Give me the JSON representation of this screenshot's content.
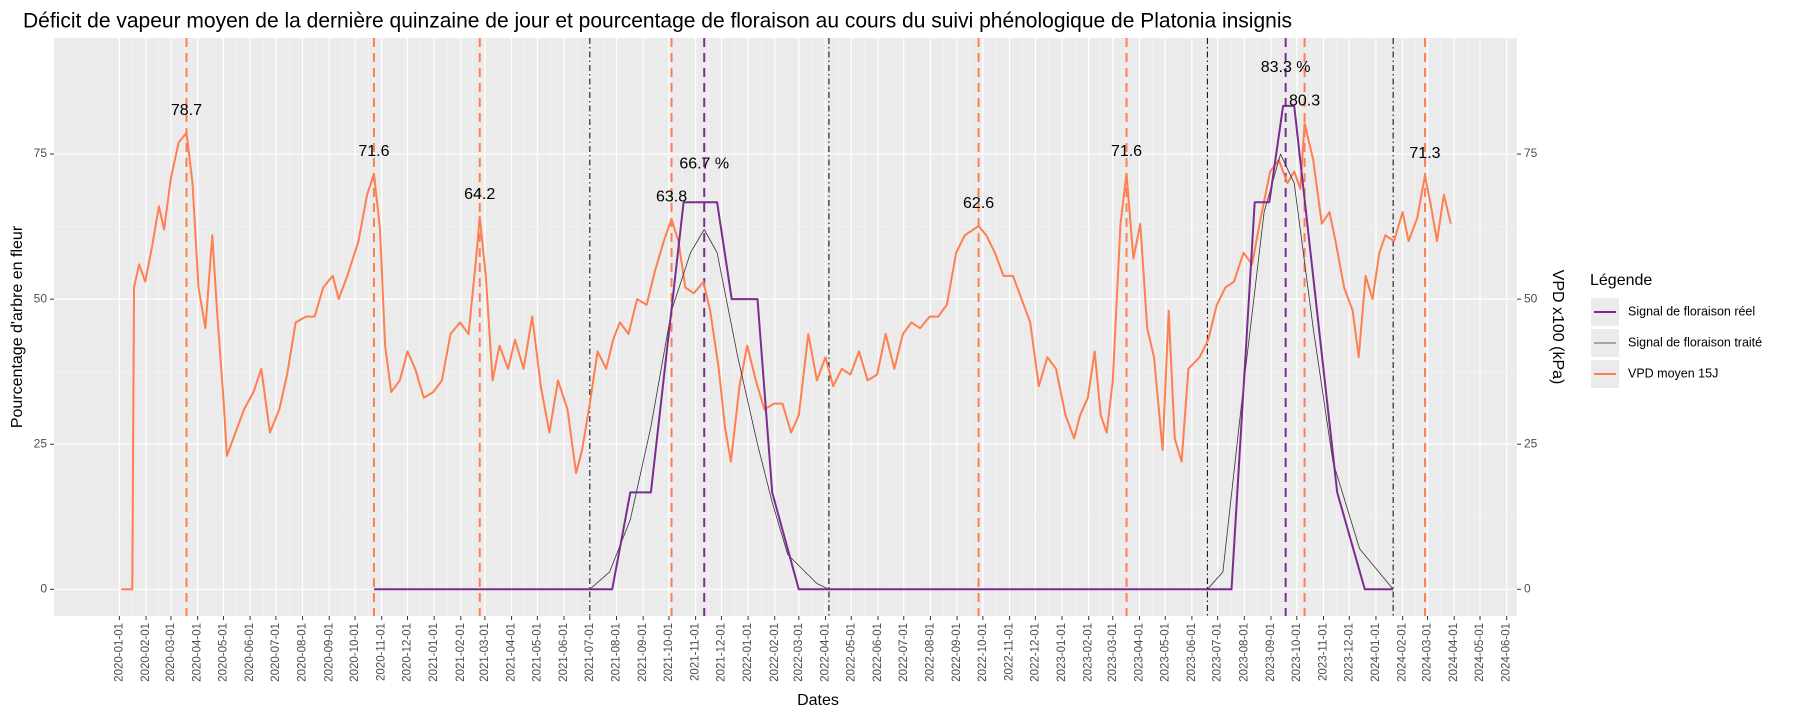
{
  "chart_data": {
    "type": "line",
    "title": "Déficit de vapeur moyen de la dernière quinzaine de jour et pourcentage de floraison au cours du suivi phénologique de Platonia insignis",
    "x_label": "Dates",
    "y_label": "Pourcentage d'arbre en fleur",
    "y2_label": "VPD x100 (kPa)",
    "legend_title": "Légende",
    "legend": "right",
    "grid": true,
    "xlim": [
      "2019-10-17",
      "2024-06-13"
    ],
    "xticks": [
      "2020-01-01",
      "2020-02-01",
      "2020-03-01",
      "2020-04-01",
      "2020-05-01",
      "2020-06-01",
      "2020-07-01",
      "2020-08-01",
      "2020-09-01",
      "2020-10-01",
      "2020-11-01",
      "2020-12-01",
      "2021-01-01",
      "2021-02-01",
      "2021-03-01",
      "2021-04-01",
      "2021-05-01",
      "2021-06-01",
      "2021-07-01",
      "2021-08-01",
      "2021-09-01",
      "2021-10-01",
      "2021-11-01",
      "2021-12-01",
      "2022-01-01",
      "2022-02-01",
      "2022-03-01",
      "2022-04-01",
      "2022-05-01",
      "2022-06-01",
      "2022-07-01",
      "2022-08-01",
      "2022-09-01",
      "2022-10-01",
      "2022-11-01",
      "2022-12-01",
      "2023-01-01",
      "2023-02-01",
      "2023-03-01",
      "2023-04-01",
      "2023-05-01",
      "2023-06-01",
      "2023-07-01",
      "2023-08-01",
      "2023-09-01",
      "2023-10-01",
      "2023-11-01",
      "2023-12-01",
      "2024-01-01",
      "2024-02-01",
      "2024-03-01",
      "2024-04-01",
      "2024-05-01",
      "2024-06-01"
    ],
    "ylim": [
      -4.6,
      95
    ],
    "yticks": [
      0,
      25,
      50,
      75
    ],
    "y2lim": [
      -4.6,
      95
    ],
    "y2ticks": [
      0,
      25,
      50,
      75
    ],
    "series": [
      {
        "name": "Signal de floraison réel",
        "color": "#7b2d8e",
        "width": 2,
        "x": [
          "2020-10-23",
          "2021-07-27",
          "2021-08-17",
          "2021-09-10",
          "2021-10-18",
          "2021-11-26",
          "2021-12-13",
          "2022-01-12",
          "2022-01-29",
          "2022-03-01",
          "2023-07-17",
          "2023-08-13",
          "2023-08-30",
          "2023-09-15",
          "2023-09-28",
          "2023-11-17",
          "2023-12-19",
          "2024-01-21"
        ],
        "values": [
          0,
          0,
          16.7,
          16.7,
          66.7,
          66.7,
          50,
          50,
          16.7,
          0,
          0,
          66.7,
          66.7,
          83.3,
          83.3,
          16.7,
          0,
          0
        ]
      },
      {
        "name": "Signal de floraison traité",
        "color": "#333333",
        "width": 0.8,
        "x": [
          "2020-10-23",
          "2021-07-01",
          "2021-07-24",
          "2021-08-17",
          "2021-09-10",
          "2021-10-04",
          "2021-10-26",
          "2021-11-11",
          "2021-11-26",
          "2021-12-20",
          "2022-01-12",
          "2022-01-29",
          "2022-02-16",
          "2022-03-22",
          "2022-04-05",
          "2023-06-19",
          "2023-07-07",
          "2023-07-31",
          "2023-08-24",
          "2023-09-12",
          "2023-09-28",
          "2023-10-20",
          "2023-11-12",
          "2023-12-13",
          "2024-01-21"
        ],
        "values": [
          0,
          0,
          3,
          12,
          28,
          48,
          58,
          62,
          58,
          40,
          25,
          15,
          6,
          1,
          0,
          0,
          3,
          35,
          65,
          75,
          70,
          45,
          22,
          7,
          0
        ]
      },
      {
        "name": "VPD moyen 15J",
        "color": "#ff7f50",
        "width": 2,
        "axis": "y2",
        "x": [
          "2020-01-03",
          "2020-01-16",
          "2020-01-18",
          "2020-01-24",
          "2020-01-31",
          "2020-02-08",
          "2020-02-16",
          "2020-02-22",
          "2020-03-01",
          "2020-03-10",
          "2020-03-19",
          "2020-03-26",
          "2020-04-02",
          "2020-04-10",
          "2020-04-18",
          "2020-04-24",
          "2020-05-01",
          "2020-05-05",
          "2020-05-15",
          "2020-05-25",
          "2020-06-05",
          "2020-06-14",
          "2020-06-24",
          "2020-07-05",
          "2020-07-14",
          "2020-07-24",
          "2020-08-05",
          "2020-08-15",
          "2020-08-25",
          "2020-09-05",
          "2020-09-12",
          "2020-09-22",
          "2020-10-05",
          "2020-10-15",
          "2020-10-23",
          "2020-10-30",
          "2020-11-05",
          "2020-11-12",
          "2020-11-22",
          "2020-12-01",
          "2020-12-10",
          "2020-12-20",
          "2020-12-31",
          "2021-01-10",
          "2021-01-20",
          "2021-01-31",
          "2021-02-10",
          "2021-02-20",
          "2021-02-23",
          "2021-03-02",
          "2021-03-10",
          "2021-03-18",
          "2021-03-28",
          "2021-04-05",
          "2021-04-15",
          "2021-04-25",
          "2021-05-05",
          "2021-05-15",
          "2021-05-25",
          "2021-06-05",
          "2021-06-15",
          "2021-06-22",
          "2021-07-01",
          "2021-07-10",
          "2021-07-20",
          "2021-07-28",
          "2021-08-05",
          "2021-08-15",
          "2021-08-25",
          "2021-09-05",
          "2021-09-15",
          "2021-09-25",
          "2021-10-04",
          "2021-10-12",
          "2021-10-20",
          "2021-10-30",
          "2021-11-10",
          "2021-11-18",
          "2021-11-28",
          "2021-12-05",
          "2021-12-12",
          "2021-12-22",
          "2021-12-31",
          "2022-01-10",
          "2022-01-20",
          "2022-01-31",
          "2022-02-10",
          "2022-02-20",
          "2022-03-01",
          "2022-03-12",
          "2022-03-22",
          "2022-04-01",
          "2022-04-10",
          "2022-04-20",
          "2022-04-30",
          "2022-05-10",
          "2022-05-20",
          "2022-05-31",
          "2022-06-10",
          "2022-06-20",
          "2022-06-30",
          "2022-07-10",
          "2022-07-20",
          "2022-07-31",
          "2022-08-10",
          "2022-08-20",
          "2022-08-31",
          "2022-09-10",
          "2022-09-26",
          "2022-10-05",
          "2022-10-15",
          "2022-10-25",
          "2022-11-05",
          "2022-11-15",
          "2022-11-25",
          "2022-12-05",
          "2022-12-15",
          "2022-12-25",
          "2023-01-05",
          "2023-01-15",
          "2023-01-22",
          "2023-01-31",
          "2023-02-08",
          "2023-02-15",
          "2023-02-22",
          "2023-03-01",
          "2023-03-10",
          "2023-03-17",
          "2023-03-25",
          "2023-04-02",
          "2023-04-10",
          "2023-04-18",
          "2023-04-28",
          "2023-05-05",
          "2023-05-12",
          "2023-05-20",
          "2023-05-28",
          "2023-06-10",
          "2023-06-20",
          "2023-06-30",
          "2023-07-10",
          "2023-07-20",
          "2023-07-31",
          "2023-08-10",
          "2023-08-20",
          "2023-08-31",
          "2023-09-10",
          "2023-09-20",
          "2023-09-28",
          "2023-10-05",
          "2023-10-10",
          "2023-10-20",
          "2023-10-30",
          "2023-11-08",
          "2023-11-15",
          "2023-11-25",
          "2023-12-05",
          "2023-12-12",
          "2023-12-20",
          "2023-12-28",
          "2024-01-05",
          "2024-01-12",
          "2024-01-22",
          "2024-02-01",
          "2024-02-08",
          "2024-02-18",
          "2024-02-27",
          "2024-03-05",
          "2024-03-12",
          "2024-03-20",
          "2024-03-28"
        ],
        "values": [
          0,
          0,
          52,
          56,
          53,
          59,
          66,
          62,
          71,
          77,
          78.7,
          70,
          52,
          45,
          61,
          47,
          33,
          23,
          27,
          31,
          34,
          38,
          27,
          31,
          37,
          46,
          47,
          47,
          52,
          54,
          50,
          54,
          60,
          68,
          71.6,
          62,
          42,
          34,
          36,
          41,
          38,
          33,
          34,
          36,
          44,
          46,
          44,
          59,
          64.2,
          54,
          36,
          42,
          38,
          43,
          38,
          47,
          35,
          27,
          36,
          31,
          20,
          24,
          32,
          41,
          38,
          43,
          46,
          44,
          50,
          49,
          55,
          60,
          63.8,
          60,
          52,
          51,
          53,
          48,
          38,
          28,
          22,
          35,
          42,
          36,
          31,
          32,
          32,
          27,
          30,
          44,
          36,
          40,
          35,
          38,
          37,
          41,
          36,
          37,
          44,
          38,
          44,
          46,
          45,
          47,
          47,
          49,
          58,
          61,
          62.6,
          61,
          58,
          54,
          54,
          50,
          46,
          35,
          40,
          38,
          30,
          26,
          30,
          33,
          41,
          30,
          27,
          36,
          63,
          71.6,
          57,
          63,
          45,
          40,
          24,
          48,
          26,
          22,
          38,
          40,
          43,
          49,
          52,
          53,
          58,
          56,
          64,
          72,
          74,
          70,
          72,
          69,
          80.3,
          74,
          63,
          65,
          60,
          52,
          48,
          40,
          54,
          50,
          58,
          61,
          60,
          65,
          60,
          64,
          71.3,
          66,
          60,
          68,
          63
        ]
      }
    ],
    "vpd_peaks": {
      "color": "#ff7f50",
      "points": [
        {
          "x": "2020-03-19",
          "value": 78.7,
          "label": "78.7"
        },
        {
          "x": "2020-10-23",
          "value": 71.6,
          "label": "71.6"
        },
        {
          "x": "2021-02-23",
          "value": 64.2,
          "label": "64.2"
        },
        {
          "x": "2021-10-04",
          "value": 63.8,
          "label": "63.8"
        },
        {
          "x": "2022-09-26",
          "value": 62.6,
          "label": "62.6"
        },
        {
          "x": "2023-03-17",
          "value": 71.6,
          "label": "71.6"
        },
        {
          "x": "2023-10-10",
          "value": 80.3,
          "label": "80.3"
        },
        {
          "x": "2024-02-27",
          "value": 71.3,
          "label": "71.3"
        }
      ]
    },
    "flowering_peaks": {
      "color": "#7b2d8e",
      "points": [
        {
          "x": "2021-11-11",
          "value": 66.7,
          "label": "66.7 %"
        },
        {
          "x": "2023-09-18",
          "value": 83.3,
          "label": "83.3 %"
        }
      ]
    },
    "season_bounds": {
      "color": "#000000",
      "x": [
        "2021-07-01",
        "2022-04-05",
        "2023-06-19",
        "2024-01-21"
      ]
    }
  }
}
